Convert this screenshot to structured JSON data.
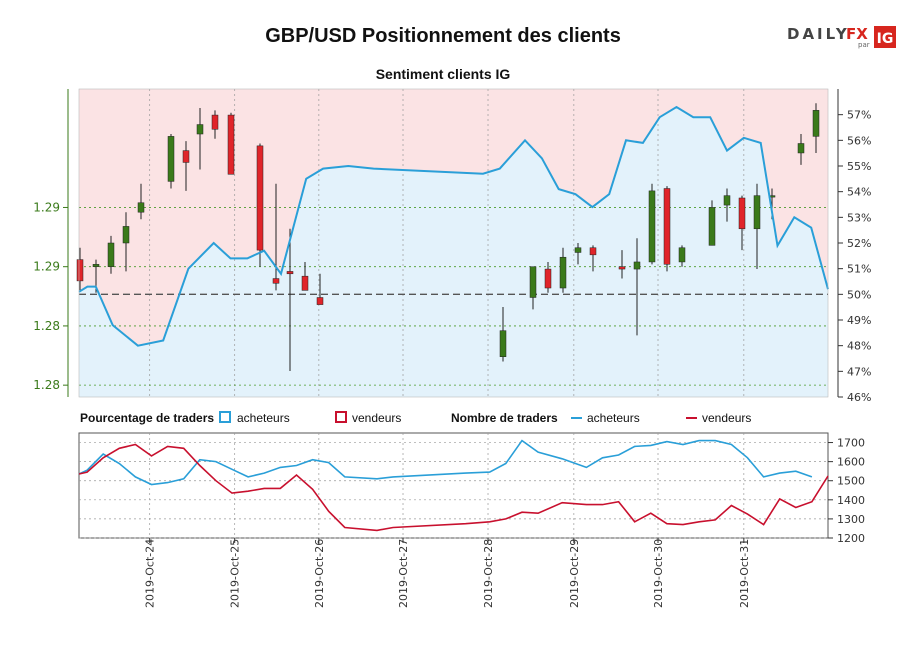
{
  "chart_data": [
    {
      "type": "candlestick",
      "title": "GBP/USD Positionnement des clients",
      "subtitle": "Sentiment clients IG",
      "left_axis": {
        "ylim": [
          1.2795,
          1.2925
        ],
        "ticks": [
          1.28,
          1.2825,
          1.285,
          1.2875
        ],
        "tick_labels": [
          "1.28",
          "1.28",
          "1.29",
          "1.29"
        ]
      },
      "right_axis": {
        "ylim": [
          46,
          58
        ],
        "ticks": [
          46,
          47,
          48,
          49,
          50,
          51,
          52,
          53,
          54,
          55,
          56,
          57
        ],
        "tick_labels": [
          "46%",
          "47%",
          "48%",
          "49%",
          "50%",
          "51%",
          "52%",
          "53%",
          "54%",
          "55%",
          "56%",
          "57%"
        ]
      },
      "reference_line_pct": 50,
      "series": [
        {
          "name": "acheteurs (%)",
          "color": "#2a9fd8",
          "points": [
            [
              0,
              50.1
            ],
            [
              1,
              50.3
            ],
            [
              2,
              50.3
            ],
            [
              4,
              48.8
            ],
            [
              7,
              48.0
            ],
            [
              10,
              48.2
            ],
            [
              13,
              51.0
            ],
            [
              16,
              52.0
            ],
            [
              18,
              51.4
            ],
            [
              20,
              51.4
            ],
            [
              22,
              51.7
            ],
            [
              24,
              50.8
            ],
            [
              27,
              54.5
            ],
            [
              29,
              54.9
            ],
            [
              32,
              55.0
            ],
            [
              35,
              54.9
            ],
            [
              48,
              54.7
            ],
            [
              50,
              54.9
            ],
            [
              53,
              56.0
            ],
            [
              55,
              55.3
            ],
            [
              57,
              54.1
            ],
            [
              59,
              53.9
            ],
            [
              61,
              53.4
            ],
            [
              63,
              53.9
            ],
            [
              65,
              56.0
            ],
            [
              67,
              55.9
            ],
            [
              69,
              56.9
            ],
            [
              71,
              57.3
            ],
            [
              73,
              56.9
            ],
            [
              75,
              56.9
            ],
            [
              77,
              55.6
            ],
            [
              79,
              56.1
            ],
            [
              81,
              55.9
            ],
            [
              83,
              51.9
            ],
            [
              85,
              53.0
            ],
            [
              87,
              52.6
            ],
            [
              89,
              50.2
            ]
          ]
        },
        {
          "name": "GBP/USD",
          "candles": [
            [
              1,
              1.2853,
              1.2858,
              1.284,
              1.2844
            ],
            [
              2,
              1.285,
              1.2853,
              1.2839,
              1.2851
            ],
            [
              3,
              1.285,
              1.2863,
              1.2847,
              1.286
            ],
            [
              4,
              1.286,
              1.2873,
              1.2848,
              1.2867
            ],
            [
              5,
              1.2873,
              1.2885,
              1.287,
              1.2877
            ],
            [
              6,
              1.2886,
              1.2906,
              1.2883,
              1.2905
            ],
            [
              7,
              1.2899,
              1.2903,
              1.2882,
              1.2894
            ],
            [
              8,
              1.2906,
              1.2917,
              1.2891,
              1.291
            ],
            [
              9,
              1.2914,
              1.2916,
              1.2904,
              1.2908
            ],
            [
              10,
              1.2914,
              1.2915,
              1.289,
              1.2889
            ],
            [
              11,
              1.2901,
              1.2902,
              1.285,
              1.2857
            ],
            [
              12,
              1.2845,
              1.2885,
              1.284,
              1.2843
            ],
            [
              13,
              1.2848,
              1.2866,
              1.2806,
              1.2847
            ]
          ]
        }
      ]
    },
    {
      "type": "line",
      "title": "",
      "ylim": [
        1200,
        1750
      ],
      "yticks": [
        1200,
        1300,
        1400,
        1500,
        1600,
        1700
      ],
      "ytick_labels": [
        "1200",
        "1300",
        "1400",
        "1500",
        "1600",
        "1700"
      ],
      "xlim": [
        0,
        89
      ],
      "xticks": [
        8.4,
        18.5,
        28.5,
        38.5,
        48.6,
        58.8,
        68.8,
        79
      ],
      "xtick_labels": [
        "2019-Oct-24",
        "2019-Oct-25",
        "2019-Oct-26",
        "2019-Oct-27",
        "2019-Oct-28",
        "2019-Oct-29",
        "2019-Oct-30",
        "2019-Oct-31"
      ],
      "series": [
        {
          "name": "acheteurs",
          "color": "#2a9fd8",
          "points": [
            [
              0,
              1535
            ],
            [
              1,
              1555
            ],
            [
              3,
              1640
            ],
            [
              5,
              1590
            ],
            [
              7,
              1520
            ],
            [
              9,
              1480
            ],
            [
              11,
              1490
            ],
            [
              13,
              1510
            ],
            [
              15,
              1610
            ],
            [
              17,
              1600
            ],
            [
              19,
              1560
            ],
            [
              21,
              1520
            ],
            [
              23,
              1540
            ],
            [
              25,
              1570
            ],
            [
              27,
              1580
            ],
            [
              29,
              1610
            ],
            [
              31,
              1595
            ],
            [
              33,
              1520
            ],
            [
              37,
              1510
            ],
            [
              39,
              1520
            ],
            [
              48,
              1540
            ],
            [
              51,
              1545
            ],
            [
              53,
              1590
            ],
            [
              55,
              1710
            ],
            [
              57,
              1650
            ],
            [
              60,
              1615
            ],
            [
              63,
              1570
            ],
            [
              65,
              1620
            ],
            [
              67,
              1635
            ],
            [
              69,
              1680
            ],
            [
              71,
              1685
            ],
            [
              73,
              1705
            ],
            [
              75,
              1690
            ],
            [
              77,
              1710
            ],
            [
              79,
              1710
            ],
            [
              81,
              1690
            ],
            [
              83,
              1620
            ],
            [
              85,
              1520
            ],
            [
              87,
              1540
            ],
            [
              89,
              1550
            ],
            [
              91,
              1520
            ]
          ]
        },
        {
          "name": "vendeurs",
          "color": "#c8102e",
          "points": [
            [
              0,
              1535
            ],
            [
              1,
              1545
            ],
            [
              3,
              1620
            ],
            [
              5,
              1670
            ],
            [
              7,
              1690
            ],
            [
              9,
              1630
            ],
            [
              11,
              1680
            ],
            [
              13,
              1670
            ],
            [
              15,
              1580
            ],
            [
              17,
              1500
            ],
            [
              19,
              1435
            ],
            [
              21,
              1445
            ],
            [
              23,
              1460
            ],
            [
              25,
              1460
            ],
            [
              27,
              1530
            ],
            [
              29,
              1455
            ],
            [
              31,
              1340
            ],
            [
              33,
              1255
            ],
            [
              37,
              1240
            ],
            [
              39,
              1255
            ],
            [
              48,
              1275
            ],
            [
              51,
              1285
            ],
            [
              53,
              1300
            ],
            [
              55,
              1335
            ],
            [
              57,
              1330
            ],
            [
              60,
              1385
            ],
            [
              63,
              1375
            ],
            [
              65,
              1375
            ],
            [
              67,
              1390
            ],
            [
              69,
              1285
            ],
            [
              71,
              1330
            ],
            [
              73,
              1275
            ],
            [
              75,
              1270
            ],
            [
              77,
              1285
            ],
            [
              79,
              1295
            ],
            [
              81,
              1370
            ],
            [
              83,
              1325
            ],
            [
              85,
              1270
            ],
            [
              87,
              1405
            ],
            [
              89,
              1360
            ],
            [
              91,
              1390
            ],
            [
              93,
              1525
            ]
          ]
        }
      ]
    }
  ],
  "legend": {
    "pct_header": "Pourcentage de traders",
    "count_header": "Nombre de traders",
    "buyers": "acheteurs",
    "sellers": "vendeurs"
  },
  "logo": {
    "daily": "DAILY",
    "fx": "FX",
    "par": "par",
    "ig": "IG"
  },
  "colors": {
    "buyers": "#2a9fd8",
    "sellers": "#c8102e",
    "candle_up": "#3a7a1a",
    "candle_down": "#e0242a",
    "buyer_fill": "#e3f2fb",
    "seller_fill": "#fbe3e4"
  }
}
